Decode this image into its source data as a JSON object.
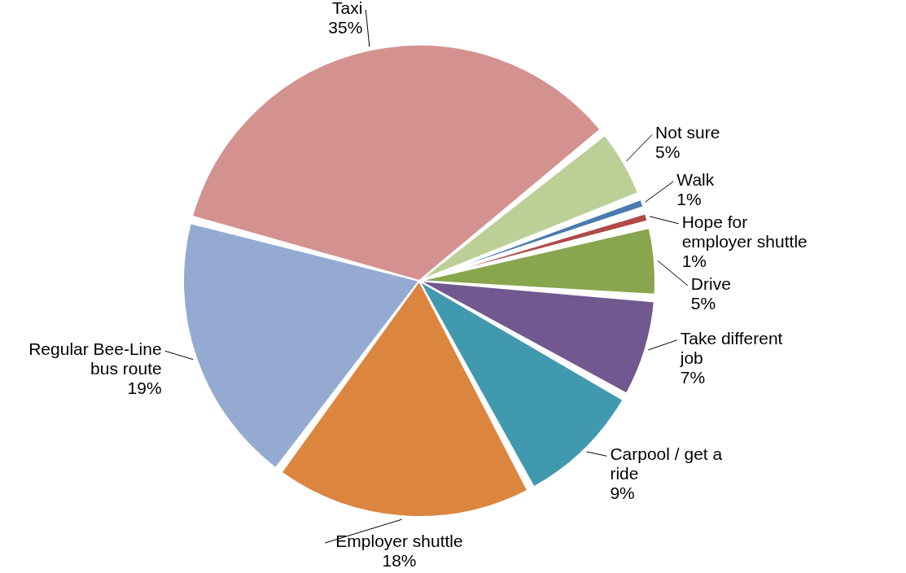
{
  "chart_data": {
    "type": "pie",
    "categories": [
      "Not sure",
      "Walk",
      "Hope for employer shuttle",
      "Drive",
      "Take different job",
      "Carpool / get a ride",
      "Employer shuttle",
      "Regular Bee-Line bus route",
      "Taxi"
    ],
    "values": [
      5,
      1,
      1,
      5,
      7,
      9,
      18,
      19,
      35
    ],
    "value_labels": [
      "5%",
      "1%",
      "1%",
      "5%",
      "7%",
      "9%",
      "18%",
      "19%",
      "35%"
    ],
    "colors": [
      "#bbcf97",
      "#4a7ab0",
      "#b14a48",
      "#88a64e",
      "#71588f",
      "#4199b0",
      "#dc853f",
      "#95aad1",
      "#d39290"
    ]
  }
}
